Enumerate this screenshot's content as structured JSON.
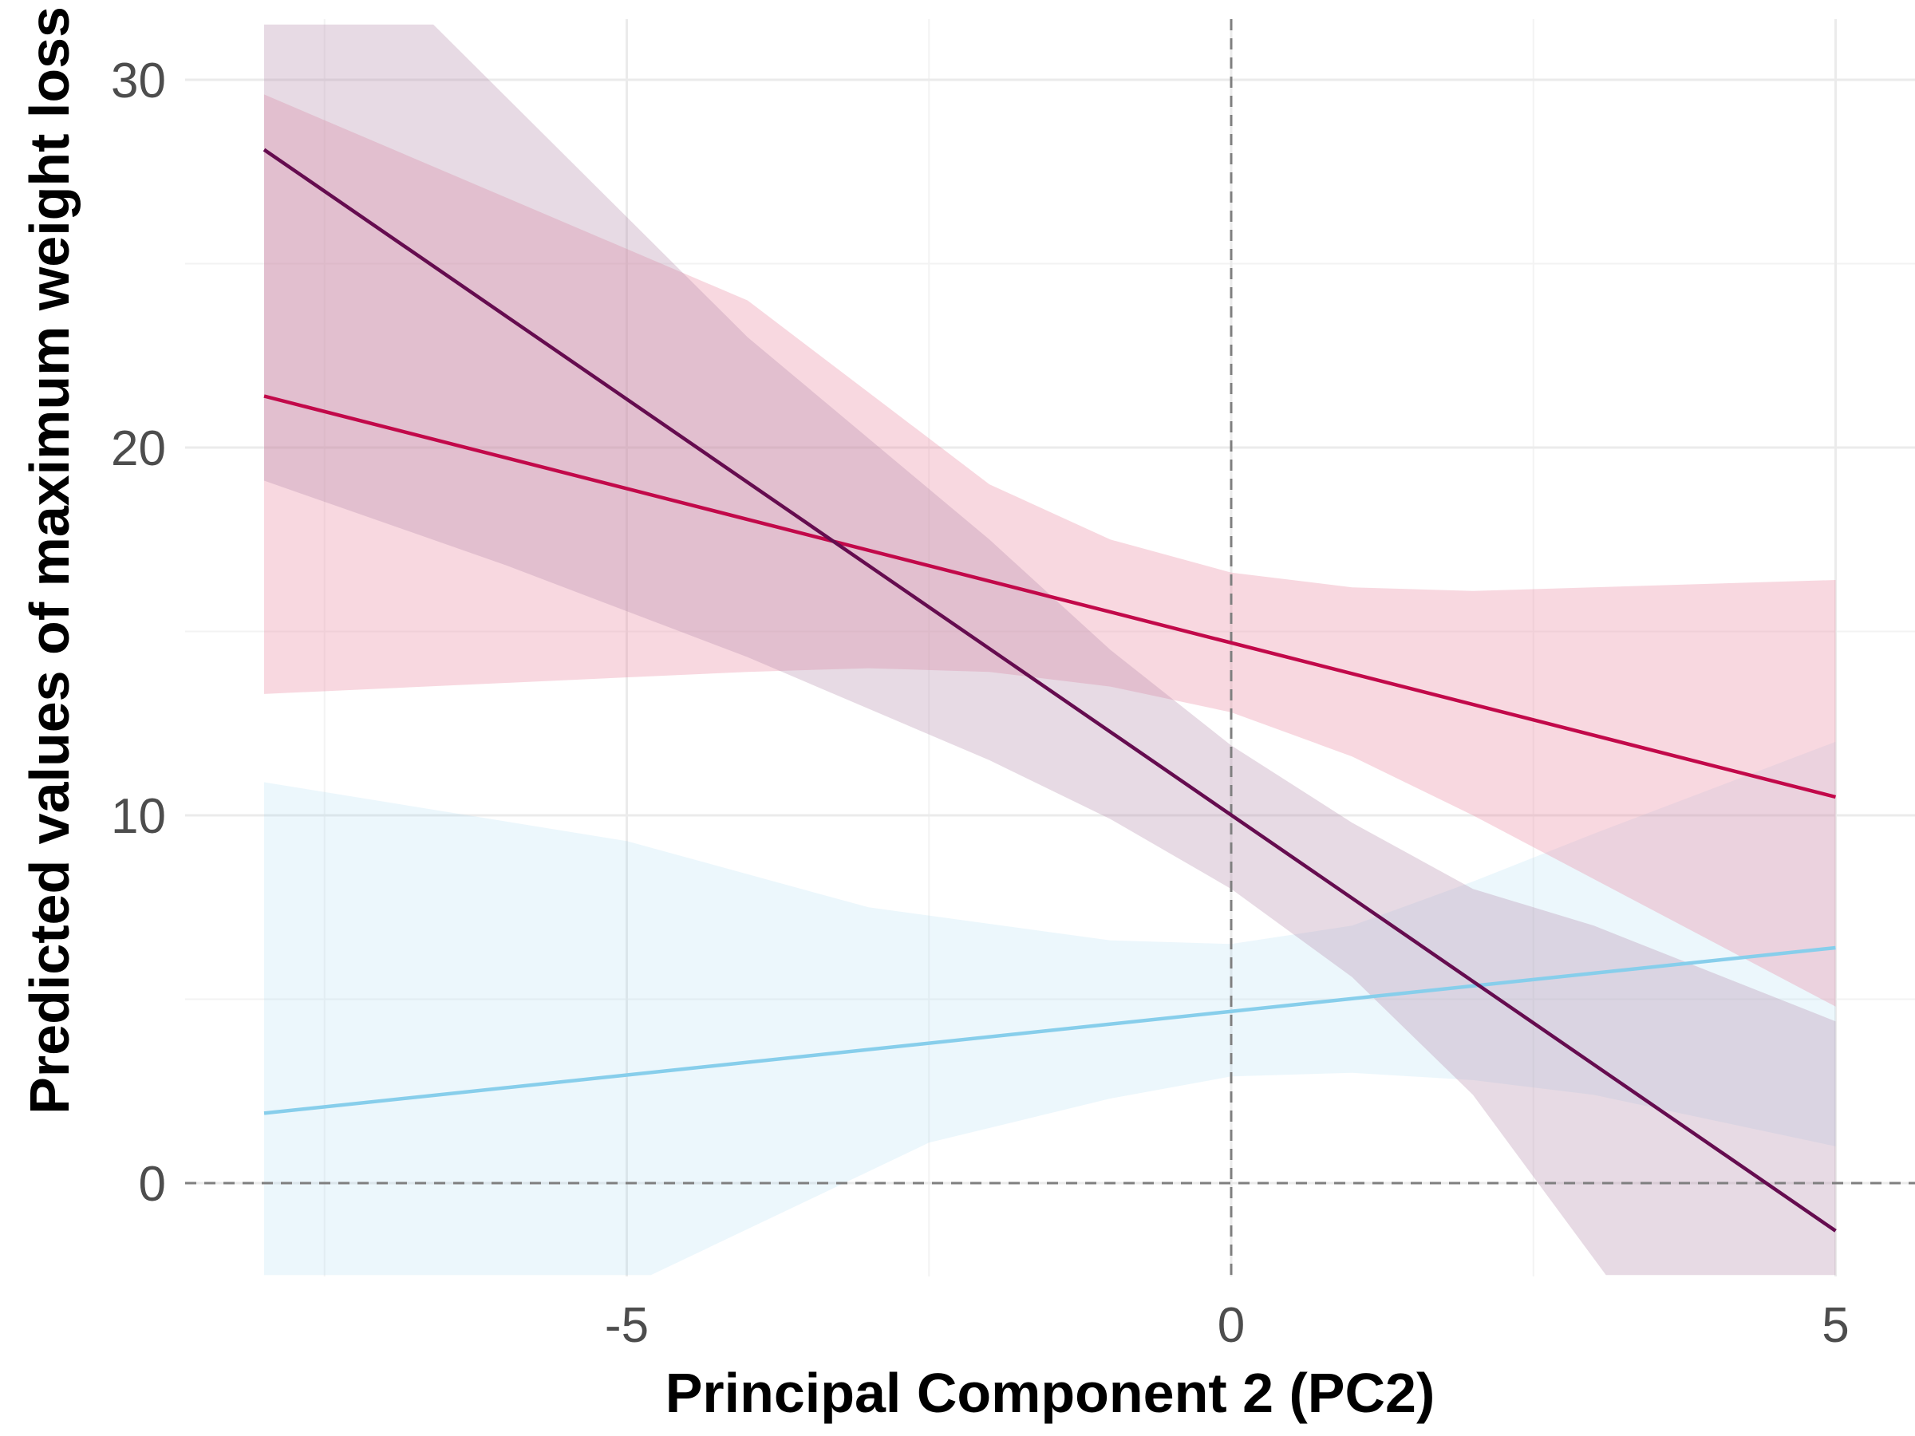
{
  "chart_data": {
    "type": "line",
    "title": "",
    "xlabel": "Principal Component 2 (PC2)",
    "ylabel": "Predicted values of maximum weight loss",
    "xlim": [
      -8.9,
      5.3
    ],
    "ylim": [
      -2.5,
      31.5
    ],
    "x_ticks": [
      -5,
      0,
      5
    ],
    "x_tick_labels": [
      "-5",
      "0",
      "5"
    ],
    "y_ticks": [
      0,
      10,
      20,
      30
    ],
    "y_tick_labels": [
      "0",
      "10",
      "20",
      "30"
    ],
    "grid": true,
    "reference_lines": {
      "x": 0,
      "y": 0
    },
    "series": [
      {
        "color": "#87ceeb",
        "band_color": "#87ceeb",
        "band_opacity": 0.16,
        "line": [
          [
            -8,
            1.9
          ],
          [
            5,
            6.4
          ]
        ],
        "upper": [
          [
            -8,
            10.9
          ],
          [
            -5,
            9.3
          ],
          [
            -3,
            7.5
          ],
          [
            -1,
            6.6
          ],
          [
            0,
            6.5
          ],
          [
            1,
            7.0
          ],
          [
            2,
            8.2
          ],
          [
            3,
            9.5
          ],
          [
            5,
            12.0
          ]
        ],
        "lower": [
          [
            -8,
            -2.5
          ],
          [
            -4.8,
            -2.5
          ],
          [
            -2.5,
            1.1
          ],
          [
            -1,
            2.3
          ],
          [
            0,
            2.9
          ],
          [
            1,
            3.0
          ],
          [
            2,
            2.8
          ],
          [
            3,
            2.4
          ],
          [
            5,
            1.0
          ]
        ]
      },
      {
        "color": "#c2094a",
        "band_color": "#e9859f",
        "band_opacity": 0.32,
        "line": [
          [
            -8,
            21.4
          ],
          [
            5,
            10.5
          ]
        ],
        "upper": [
          [
            -8,
            29.6
          ],
          [
            -6,
            26.8
          ],
          [
            -4,
            24.0
          ],
          [
            -2,
            19.0
          ],
          [
            -1,
            17.5
          ],
          [
            0,
            16.6
          ],
          [
            1,
            16.2
          ],
          [
            2,
            16.1
          ],
          [
            5,
            16.4
          ]
        ],
        "lower": [
          [
            -8,
            13.3
          ],
          [
            -6,
            13.6
          ],
          [
            -4,
            13.9
          ],
          [
            -3,
            14.0
          ],
          [
            -2,
            13.9
          ],
          [
            -1,
            13.5
          ],
          [
            0,
            12.8
          ],
          [
            1,
            11.6
          ],
          [
            2,
            10.0
          ],
          [
            5,
            4.8
          ]
        ]
      },
      {
        "color": "#650c4f",
        "band_color": "#b48caa",
        "band_opacity": 0.32,
        "line": [
          [
            -8,
            28.1
          ],
          [
            5,
            -1.3
          ]
        ],
        "upper": [
          [
            -8,
            31.5
          ],
          [
            -6.6,
            31.5
          ],
          [
            -4,
            23.0
          ],
          [
            -2,
            17.5
          ],
          [
            -1,
            14.5
          ],
          [
            0,
            11.9
          ],
          [
            1,
            9.8
          ],
          [
            2,
            8.0
          ],
          [
            3,
            7.0
          ],
          [
            5,
            4.4
          ]
        ],
        "lower": [
          [
            -8,
            19.1
          ],
          [
            -6,
            16.8
          ],
          [
            -4,
            14.3
          ],
          [
            -2,
            11.5
          ],
          [
            -1,
            9.9
          ],
          [
            0,
            8.0
          ],
          [
            1,
            5.6
          ],
          [
            2,
            2.4
          ],
          [
            3.1,
            -2.5
          ],
          [
            5,
            -2.5
          ]
        ]
      }
    ]
  }
}
